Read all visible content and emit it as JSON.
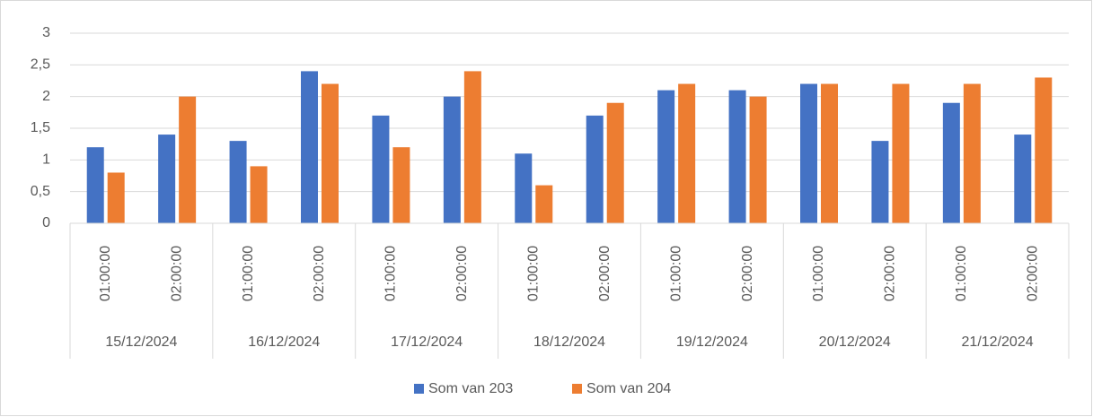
{
  "chart_data": {
    "type": "bar",
    "category_groups": [
      {
        "label": "15/12/2024",
        "categories": [
          "01:00:00",
          "02:00:00"
        ]
      },
      {
        "label": "16/12/2024",
        "categories": [
          "01:00:00",
          "02:00:00"
        ]
      },
      {
        "label": "17/12/2024",
        "categories": [
          "01:00:00",
          "02:00:00"
        ]
      },
      {
        "label": "18/12/2024",
        "categories": [
          "01:00:00",
          "02:00:00"
        ]
      },
      {
        "label": "19/12/2024",
        "categories": [
          "01:00:00",
          "02:00:00"
        ]
      },
      {
        "label": "20/12/2024",
        "categories": [
          "01:00:00",
          "02:00:00"
        ]
      },
      {
        "label": "21/12/2024",
        "categories": [
          "01:00:00",
          "02:00:00"
        ]
      }
    ],
    "series": [
      {
        "name": "Som van 203",
        "color": "#4472c4",
        "values": [
          1.2,
          1.4,
          1.3,
          2.4,
          1.7,
          2.0,
          1.1,
          1.7,
          2.1,
          2.1,
          2.2,
          1.3,
          1.9,
          1.4
        ]
      },
      {
        "name": "Som van 204",
        "color": "#ed7d31",
        "values": [
          0.8,
          2.0,
          0.9,
          2.2,
          1.2,
          2.4,
          0.6,
          1.9,
          2.2,
          2.0,
          2.2,
          2.2,
          2.2,
          2.3
        ]
      }
    ],
    "ylim": [
      0,
      3
    ],
    "yticks": [
      0,
      {
        "value": 0.5,
        "label": "0,5"
      },
      1,
      {
        "value": 1.5,
        "label": "1,5"
      },
      2,
      {
        "value": 2.5,
        "label": "2,5"
      },
      3
    ],
    "grid": true,
    "legend": "bottom"
  }
}
